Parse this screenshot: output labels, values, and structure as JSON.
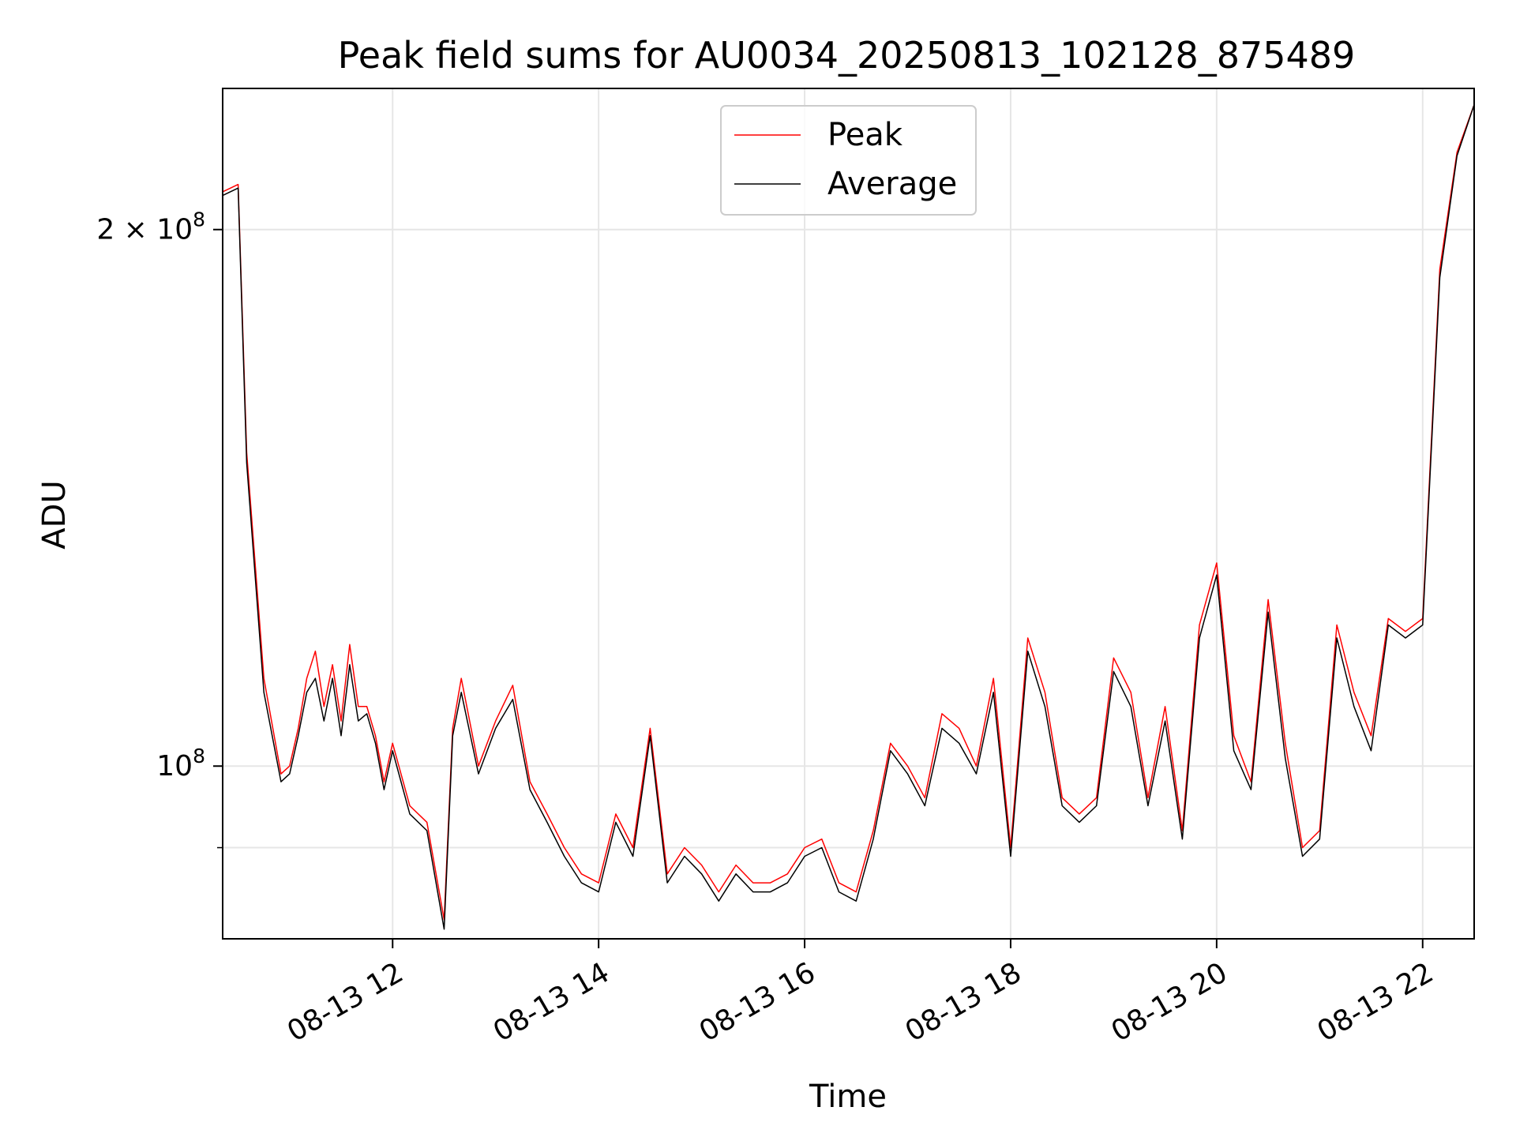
{
  "chart_data": {
    "type": "line",
    "title": "Peak field sums for AU0034_20250813_102128_875489",
    "xlabel": "Time",
    "ylabel": "ADU",
    "y_scale": "log",
    "xlim": [
      "2025-08-13T10:21",
      "2025-08-13T22:30"
    ],
    "ylim": [
      80000000,
      240000000
    ],
    "x_ticks": [
      {
        "t": "2025-08-13T12:00",
        "label": "08-13 12"
      },
      {
        "t": "2025-08-13T14:00",
        "label": "08-13 14"
      },
      {
        "t": "2025-08-13T16:00",
        "label": "08-13 16"
      },
      {
        "t": "2025-08-13T18:00",
        "label": "08-13 18"
      },
      {
        "t": "2025-08-13T20:00",
        "label": "08-13 20"
      },
      {
        "t": "2025-08-13T22:00",
        "label": "08-13 22"
      }
    ],
    "y_ticks": [
      {
        "value": 200000000,
        "base": "2 × 10",
        "exp": "8"
      },
      {
        "value": 100000000,
        "base": "10",
        "exp": "8"
      }
    ],
    "y_minor_gridlines": [
      90000000
    ],
    "grid": true,
    "legend_position": "top-center",
    "x": [
      "2025-08-13T10:21",
      "2025-08-13T10:30",
      "2025-08-13T10:35",
      "2025-08-13T10:45",
      "2025-08-13T10:55",
      "2025-08-13T11:00",
      "2025-08-13T11:05",
      "2025-08-13T11:10",
      "2025-08-13T11:15",
      "2025-08-13T11:20",
      "2025-08-13T11:25",
      "2025-08-13T11:30",
      "2025-08-13T11:35",
      "2025-08-13T11:40",
      "2025-08-13T11:45",
      "2025-08-13T11:50",
      "2025-08-13T11:55",
      "2025-08-13T12:00",
      "2025-08-13T12:10",
      "2025-08-13T12:20",
      "2025-08-13T12:30",
      "2025-08-13T12:35",
      "2025-08-13T12:40",
      "2025-08-13T12:50",
      "2025-08-13T13:00",
      "2025-08-13T13:10",
      "2025-08-13T13:20",
      "2025-08-13T13:30",
      "2025-08-13T13:40",
      "2025-08-13T13:50",
      "2025-08-13T14:00",
      "2025-08-13T14:10",
      "2025-08-13T14:20",
      "2025-08-13T14:30",
      "2025-08-13T14:40",
      "2025-08-13T14:50",
      "2025-08-13T15:00",
      "2025-08-13T15:10",
      "2025-08-13T15:20",
      "2025-08-13T15:30",
      "2025-08-13T15:40",
      "2025-08-13T15:50",
      "2025-08-13T16:00",
      "2025-08-13T16:10",
      "2025-08-13T16:20",
      "2025-08-13T16:30",
      "2025-08-13T16:40",
      "2025-08-13T16:50",
      "2025-08-13T17:00",
      "2025-08-13T17:10",
      "2025-08-13T17:20",
      "2025-08-13T17:30",
      "2025-08-13T17:40",
      "2025-08-13T17:50",
      "2025-08-13T18:00",
      "2025-08-13T18:10",
      "2025-08-13T18:20",
      "2025-08-13T18:30",
      "2025-08-13T18:40",
      "2025-08-13T18:50",
      "2025-08-13T19:00",
      "2025-08-13T19:10",
      "2025-08-13T19:20",
      "2025-08-13T19:30",
      "2025-08-13T19:40",
      "2025-08-13T19:50",
      "2025-08-13T20:00",
      "2025-08-13T20:10",
      "2025-08-13T20:20",
      "2025-08-13T20:30",
      "2025-08-13T20:40",
      "2025-08-13T20:50",
      "2025-08-13T21:00",
      "2025-08-13T21:10",
      "2025-08-13T21:20",
      "2025-08-13T21:30",
      "2025-08-13T21:40",
      "2025-08-13T21:50",
      "2025-08-13T22:00",
      "2025-08-13T22:10",
      "2025-08-13T22:20",
      "2025-08-13T22:30"
    ],
    "series": [
      {
        "name": "Peak",
        "color": "#ff0000",
        "values": [
          210000000,
          212000000,
          150000000,
          112000000,
          99000000,
          100000000,
          105000000,
          112000000,
          116000000,
          108000000,
          114000000,
          106000000,
          117000000,
          108000000,
          108000000,
          104000000,
          98000000,
          103000000,
          95000000,
          93000000,
          82000000,
          105000000,
          112000000,
          100000000,
          106000000,
          111000000,
          98000000,
          94000000,
          90000000,
          87000000,
          86000000,
          94000000,
          90000000,
          105000000,
          87000000,
          90000000,
          88000000,
          85000000,
          88000000,
          86000000,
          86000000,
          87000000,
          90000000,
          91000000,
          86000000,
          85000000,
          92000000,
          103000000,
          100000000,
          96000000,
          107000000,
          105000000,
          100000000,
          112000000,
          90000000,
          118000000,
          110000000,
          96000000,
          94000000,
          96000000,
          115000000,
          110000000,
          96000000,
          108000000,
          92000000,
          120000000,
          130000000,
          104000000,
          98000000,
          124000000,
          103000000,
          90000000,
          92000000,
          120000000,
          110000000,
          104000000,
          121000000,
          119000000,
          121000000,
          190000000,
          221000000,
          235000000
        ]
      },
      {
        "name": "Average",
        "color": "#000000",
        "values": [
          209000000,
          211000000,
          148000000,
          110000000,
          98000000,
          99000000,
          104000000,
          110000000,
          112000000,
          106000000,
          112000000,
          104000000,
          114000000,
          106000000,
          107000000,
          103000000,
          97000000,
          102000000,
          94000000,
          92000000,
          81000000,
          104000000,
          110000000,
          99000000,
          105000000,
          109000000,
          97000000,
          93000000,
          89000000,
          86000000,
          85000000,
          93000000,
          89000000,
          104000000,
          86000000,
          89000000,
          87000000,
          84000000,
          87000000,
          85000000,
          85000000,
          86000000,
          89000000,
          90000000,
          85000000,
          84000000,
          91000000,
          102000000,
          99000000,
          95000000,
          105000000,
          103000000,
          99000000,
          110000000,
          89000000,
          116000000,
          108000000,
          95000000,
          93000000,
          95000000,
          113000000,
          108000000,
          95000000,
          106000000,
          91000000,
          118000000,
          128000000,
          102000000,
          97000000,
          122000000,
          101000000,
          89000000,
          91000000,
          118000000,
          108000000,
          102000000,
          120000000,
          118000000,
          120000000,
          188000000,
          220000000,
          235000000
        ]
      }
    ]
  }
}
